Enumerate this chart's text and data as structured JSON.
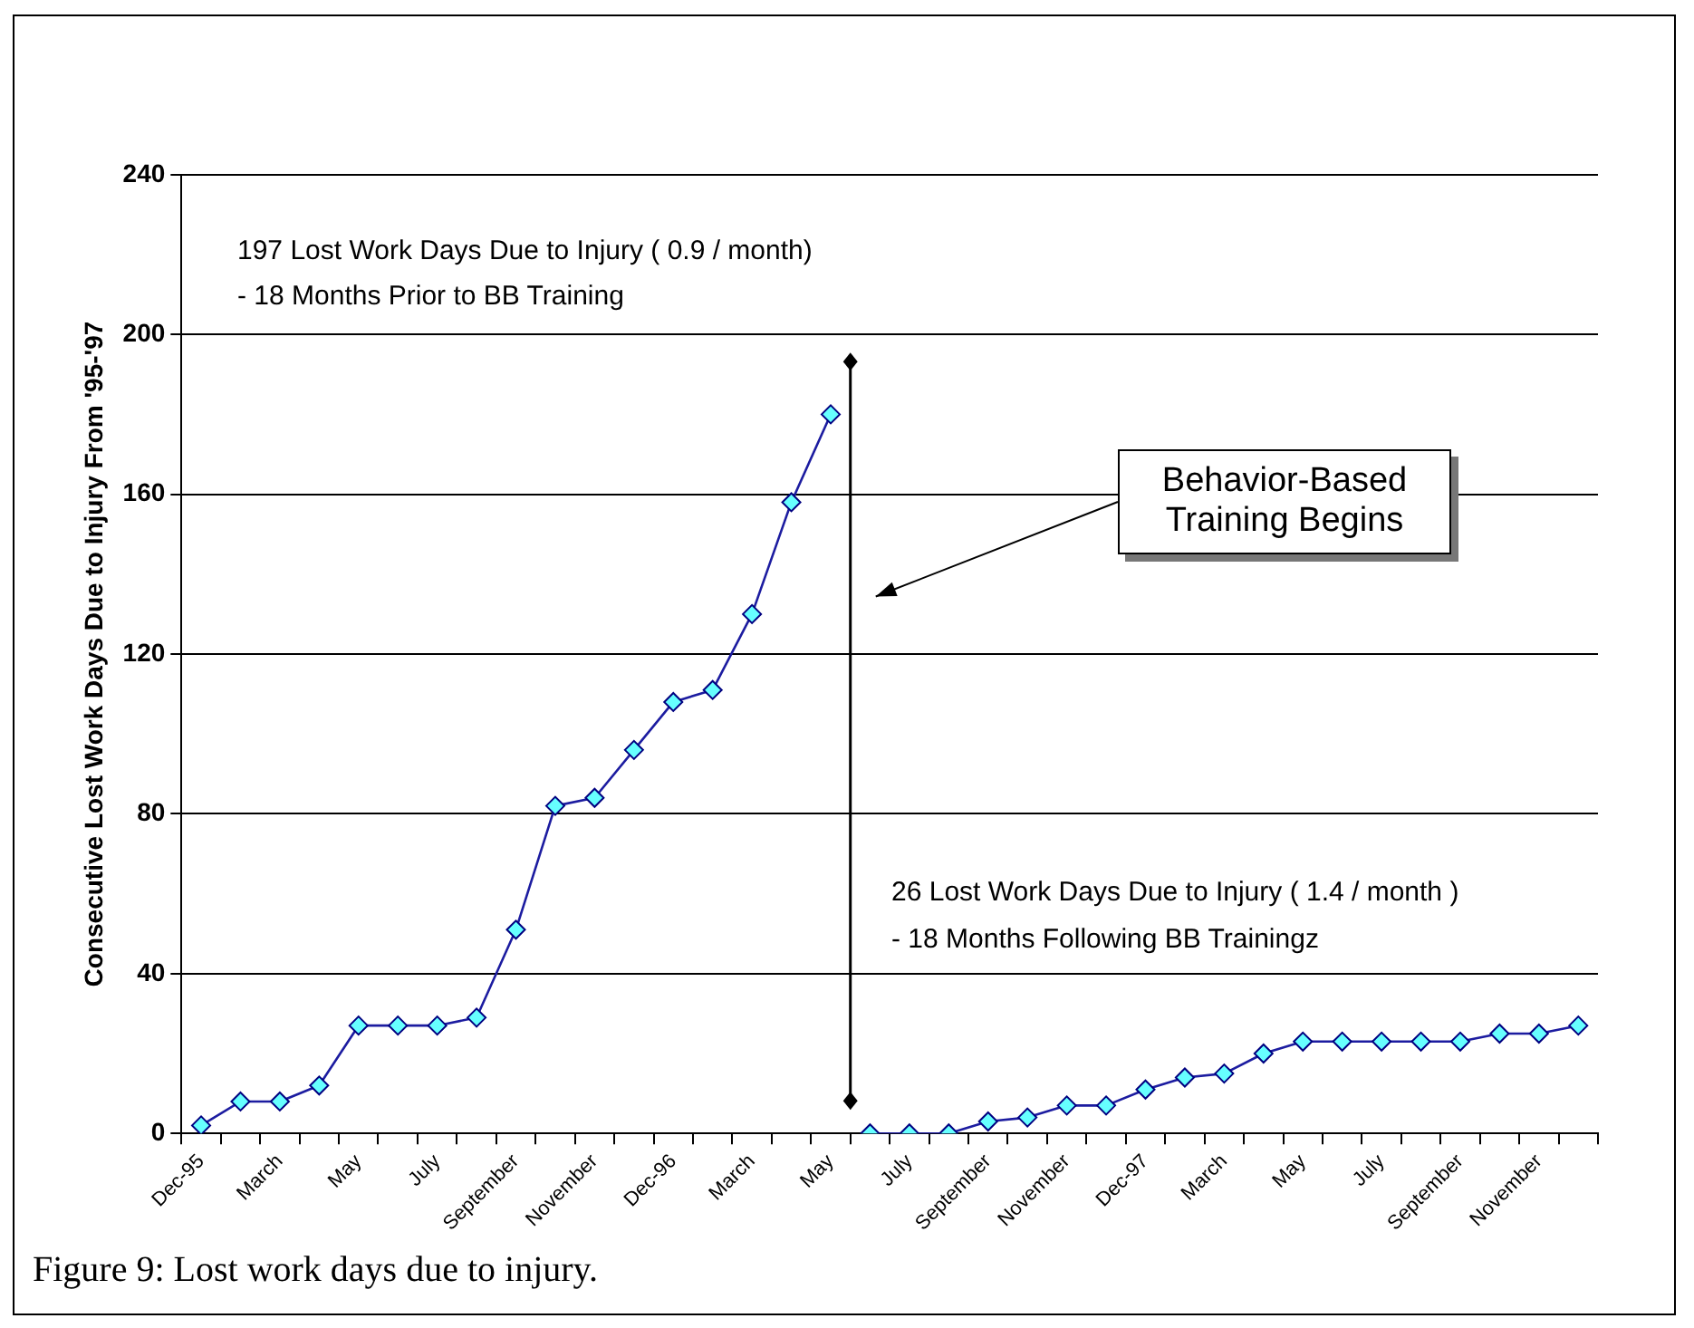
{
  "chart_data": {
    "type": "line",
    "ylabel": "Consecutive Lost Work Days Due to Injury From '95-'97",
    "categories": [
      "Dec-95",
      null,
      "March",
      null,
      "May",
      null,
      "July",
      null,
      "September",
      null,
      "November",
      null,
      "Dec-96",
      null,
      "March",
      null,
      "May",
      null,
      "July",
      null,
      "September",
      null,
      "November",
      null,
      "Dec-97",
      null,
      "March",
      null,
      "May",
      null,
      "July",
      null,
      "September",
      null,
      "November",
      null
    ],
    "series": [
      {
        "color": "#1c1ca0",
        "values": [
          2,
          8,
          8,
          12,
          27,
          27,
          27,
          29,
          51,
          82,
          84,
          96,
          108,
          111,
          130,
          158,
          180,
          null,
          null,
          null,
          null,
          null,
          null,
          null,
          null,
          null,
          null,
          null,
          null,
          null,
          null,
          null,
          null,
          null,
          null,
          null
        ]
      },
      {
        "color": "#1c1ca0",
        "values": [
          null,
          null,
          null,
          null,
          null,
          null,
          null,
          null,
          null,
          null,
          null,
          null,
          null,
          null,
          null,
          null,
          null,
          0,
          0,
          0,
          3,
          4,
          7,
          7,
          11,
          14,
          15,
          20,
          23,
          23,
          23,
          23,
          23,
          25,
          25,
          27
        ]
      }
    ],
    "ylim": [
      0,
      240
    ],
    "yticks": [
      0,
      40,
      80,
      120,
      160,
      200,
      240
    ],
    "grid": "y",
    "marker": "diamond",
    "line_style": "solid",
    "annotations": [
      "Behavior-Based Training Begins",
      "197 Lost Work Days Due to Injury ( 0.9 / month)",
      "- 18 Months Prior to BB Training",
      "26 Lost Work Days Due to Injury ( 1.4 / month )",
      "- 18 Months Following BB Trainingz",
      "Figure 9: Lost work days due to injury."
    ]
  }
}
